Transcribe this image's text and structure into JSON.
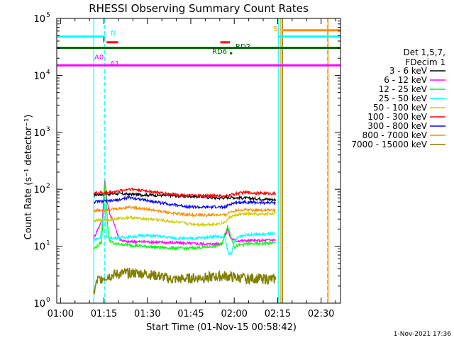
{
  "chart_data": {
    "type": "line",
    "title": "RHESSI Observing Summary Count Rates",
    "xlabel": "Start Time (01-Nov-15 00:58:42)",
    "ylabel": "Count Rate (s⁻¹ detector⁻¹)",
    "xlim": [
      0.0,
      98.0
    ],
    "ylim_log10": [
      0,
      5
    ],
    "x_ticks": [
      {
        "t": 1.3,
        "label": "01:00"
      },
      {
        "t": 16.3,
        "label": "01:15"
      },
      {
        "t": 31.3,
        "label": "01:30"
      },
      {
        "t": 46.3,
        "label": "01:45"
      },
      {
        "t": 61.3,
        "label": "02:00"
      },
      {
        "t": 76.3,
        "label": "02:15"
      },
      {
        "t": 91.3,
        "label": "02:30"
      }
    ],
    "y_ticks": [
      {
        "exp": 0,
        "base": "10",
        "sup": "0"
      },
      {
        "exp": 1,
        "base": "10",
        "sup": "1"
      },
      {
        "exp": 2,
        "base": "10",
        "sup": "2"
      },
      {
        "exp": 3,
        "base": "10",
        "sup": "3"
      },
      {
        "exp": 4,
        "base": "10",
        "sup": "4"
      },
      {
        "exp": 5,
        "base": "10",
        "sup": "5"
      }
    ],
    "legend_header": [
      "Det 1,5,7,",
      "FDecim 1"
    ],
    "legend_position": "right",
    "series": [
      {
        "name": "3 - 6 keV",
        "color": "#000000",
        "points": [
          [
            12.8,
            80
          ],
          [
            20,
            84
          ],
          [
            30,
            80
          ],
          [
            40,
            77
          ],
          [
            50,
            74
          ],
          [
            56,
            70
          ],
          [
            60,
            72
          ],
          [
            65,
            70
          ],
          [
            70,
            68
          ],
          [
            75,
            66
          ],
          [
            75.6,
            66
          ]
        ]
      },
      {
        "name": "6 - 12 keV",
        "color": "#ff00ff",
        "points": [
          [
            12.8,
            14
          ],
          [
            15.8,
            30
          ],
          [
            16.6,
            150
          ],
          [
            17.4,
            60
          ],
          [
            18.5,
            35
          ],
          [
            20,
            24
          ],
          [
            21,
            16
          ],
          [
            22,
            13
          ],
          [
            24,
            12
          ],
          [
            30,
            12
          ],
          [
            40,
            11.5
          ],
          [
            50,
            11
          ],
          [
            57,
            11
          ],
          [
            59,
            20
          ],
          [
            60,
            14
          ],
          [
            62,
            12.5
          ],
          [
            65,
            12.5
          ],
          [
            70,
            12.5
          ],
          [
            75.6,
            13
          ]
        ]
      },
      {
        "name": "12 - 25 keV",
        "color": "#00ff00",
        "points": [
          [
            12.8,
            9
          ],
          [
            14,
            10
          ],
          [
            15.5,
            12
          ],
          [
            16.7,
            140
          ],
          [
            17.5,
            28
          ],
          [
            18,
            13
          ],
          [
            20,
            11
          ],
          [
            25,
            10.5
          ],
          [
            30,
            10
          ],
          [
            35,
            9.5
          ],
          [
            40,
            9.3
          ],
          [
            45,
            9.2
          ],
          [
            50,
            9.5
          ],
          [
            55,
            10
          ],
          [
            57,
            11
          ],
          [
            59,
            23
          ],
          [
            60.5,
            13
          ],
          [
            61.5,
            9.5
          ],
          [
            63,
            10.5
          ],
          [
            66,
            11
          ],
          [
            70,
            11
          ],
          [
            75.6,
            11.5
          ]
        ]
      },
      {
        "name": "25 - 50 keV",
        "color": "#00ffff",
        "points": [
          [
            12.8,
            13
          ],
          [
            15,
            14
          ],
          [
            16.6,
            55
          ],
          [
            17.2,
            14
          ],
          [
            20,
            14
          ],
          [
            25,
            14.5
          ],
          [
            30,
            15.5
          ],
          [
            35,
            15
          ],
          [
            40,
            14
          ],
          [
            45,
            13.5
          ],
          [
            50,
            14
          ],
          [
            55,
            15
          ],
          [
            58,
            14
          ],
          [
            59.5,
            7
          ],
          [
            60.5,
            8
          ],
          [
            61.5,
            12.5
          ],
          [
            63,
            15
          ],
          [
            66,
            16
          ],
          [
            70,
            16
          ],
          [
            75.6,
            16.5
          ]
        ]
      },
      {
        "name": "50 - 100 keV",
        "color": "#cccc00",
        "points": [
          [
            12.8,
            28
          ],
          [
            20,
            30
          ],
          [
            25,
            32
          ],
          [
            28,
            31
          ],
          [
            35,
            29
          ],
          [
            40,
            27
          ],
          [
            45,
            25
          ],
          [
            50,
            24
          ],
          [
            55,
            24.5
          ],
          [
            58,
            26
          ],
          [
            60,
            33
          ],
          [
            63,
            36
          ],
          [
            66,
            37
          ],
          [
            70,
            36
          ],
          [
            75.6,
            38
          ]
        ]
      },
      {
        "name": "100 - 300 keV",
        "color": "#ff0000",
        "points": [
          [
            12.8,
            86
          ],
          [
            18,
            88
          ],
          [
            22,
            94
          ],
          [
            25,
            102
          ],
          [
            28,
            98
          ],
          [
            32,
            92
          ],
          [
            36,
            86
          ],
          [
            40,
            82
          ],
          [
            45,
            78
          ],
          [
            50,
            77
          ],
          [
            55,
            78
          ],
          [
            58,
            74
          ],
          [
            60,
            80
          ],
          [
            62,
            84
          ],
          [
            65,
            88
          ],
          [
            70,
            85
          ],
          [
            75.6,
            84
          ]
        ]
      },
      {
        "name": "300 - 800 keV",
        "color": "#0000ff",
        "points": [
          [
            12.8,
            60
          ],
          [
            18,
            62
          ],
          [
            22,
            66
          ],
          [
            25,
            72
          ],
          [
            28,
            68
          ],
          [
            32,
            62
          ],
          [
            36,
            58
          ],
          [
            40,
            54
          ],
          [
            45,
            50
          ],
          [
            50,
            48
          ],
          [
            55,
            49
          ],
          [
            58,
            48
          ],
          [
            60,
            55
          ],
          [
            62,
            58
          ],
          [
            65,
            60
          ],
          [
            70,
            58
          ],
          [
            75.6,
            58
          ]
        ]
      },
      {
        "name": "800 - 7000 keV",
        "color": "#ff8c00",
        "points": [
          [
            12.8,
            42
          ],
          [
            18,
            44
          ],
          [
            22,
            46
          ],
          [
            25,
            49
          ],
          [
            28,
            47
          ],
          [
            32,
            44
          ],
          [
            36,
            41
          ],
          [
            40,
            38
          ],
          [
            45,
            36
          ],
          [
            50,
            35
          ],
          [
            55,
            35.5
          ],
          [
            58,
            35
          ],
          [
            60,
            40
          ],
          [
            62,
            43
          ],
          [
            65,
            44
          ],
          [
            70,
            43
          ],
          [
            75.6,
            43
          ]
        ]
      },
      {
        "name": "7000 - 15000 keV",
        "color": "#808000",
        "points": [
          [
            12.8,
            1.5
          ],
          [
            14,
            2.5
          ],
          [
            16,
            2.8
          ],
          [
            20,
            3.2
          ],
          [
            25,
            3.4
          ],
          [
            30,
            3.3
          ],
          [
            35,
            3.0
          ],
          [
            40,
            2.6
          ],
          [
            45,
            2.7
          ],
          [
            50,
            2.8
          ],
          [
            55,
            2.9
          ],
          [
            58,
            3.0
          ],
          [
            62,
            2.8
          ],
          [
            66,
            2.7
          ],
          [
            70,
            2.7
          ],
          [
            75.6,
            2.6
          ]
        ]
      }
    ],
    "flag_bars": [
      {
        "name": "N",
        "label": "N",
        "color": "#00ffff",
        "x0": 0.0,
        "x1": 16.6,
        "y": 48000
      },
      {
        "name": "N",
        "label": "",
        "color": "#00ffff",
        "x0": 76.6,
        "x1": 98.0,
        "y": 48000
      },
      {
        "name": "S",
        "label": "S",
        "color": "#ff8c00",
        "x0": 77.8,
        "x1": 98.0,
        "y": 62000
      },
      {
        "name": "F",
        "label": "F",
        "color": "#ff0000",
        "x0": 17.2,
        "x1": 21.2,
        "y": 38000
      },
      {
        "name": "F",
        "label": "",
        "color": "#ff0000",
        "x0": 56.5,
        "x1": 59.8,
        "y": 38000
      },
      {
        "name": "RD2",
        "label": "RD2",
        "color": "#006400",
        "x0": 0.0,
        "x1": 98.0,
        "y": 30500
      },
      {
        "name": "RD6",
        "label": "RD6",
        "color": "#006400",
        "x0": 59.8,
        "x1": 60.6,
        "y": 24500
      },
      {
        "name": "A1",
        "label": "A1",
        "color": "#ff00ff",
        "x0": 0.0,
        "x1": 98.0,
        "y": 15000
      }
    ],
    "flag_labels": [
      {
        "text": "N",
        "color": "#00ffff"
      },
      {
        "text": "S",
        "color": "#ff8c00"
      },
      {
        "text": "F",
        "color": "#ff0000"
      },
      {
        "text": "RD2",
        "color": "#006400"
      },
      {
        "text": "RD6",
        "color": "#006400"
      },
      {
        "text": "A0",
        "color": "#ff00ff"
      },
      {
        "text": "A1",
        "color": "#ff00ff"
      }
    ],
    "vertical_lines": [
      {
        "x": 12.8,
        "color": "#00ffff",
        "style": "solid"
      },
      {
        "x": 16.6,
        "color": "#00ffff",
        "style": "dashed"
      },
      {
        "x": 76.5,
        "color": "#00ffff",
        "style": "solid"
      },
      {
        "x": 77.4,
        "color": "#ff8c00",
        "style": "solid"
      },
      {
        "x": 78.0,
        "color": "#808000",
        "style": "solid"
      },
      {
        "x": 93.5,
        "color": "#00ffff",
        "style": "dashed"
      },
      {
        "x": 93.7,
        "color": "#ff8c00",
        "style": "solid"
      }
    ],
    "footer": "1-Nov-2021 17:36"
  }
}
